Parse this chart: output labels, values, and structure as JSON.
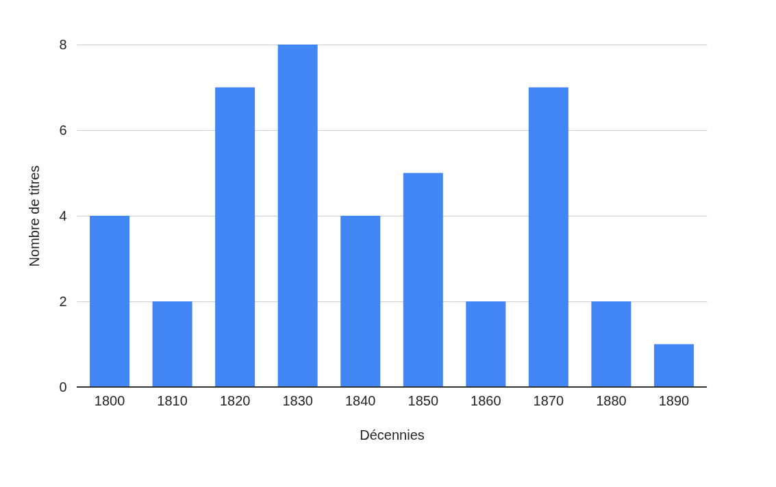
{
  "chart_data": {
    "type": "bar",
    "xlabel": "Décennies",
    "ylabel": "Nombre de titres",
    "categories": [
      "1800",
      "1810",
      "1820",
      "1830",
      "1840",
      "1850",
      "1860",
      "1870",
      "1880",
      "1890"
    ],
    "values": [
      4,
      2,
      7,
      8,
      4,
      5,
      2,
      7,
      2,
      1
    ],
    "color": "#4285f4",
    "ylim": [
      0,
      8
    ],
    "yticks": [
      0,
      2,
      4,
      6,
      8
    ],
    "grid": "y"
  }
}
